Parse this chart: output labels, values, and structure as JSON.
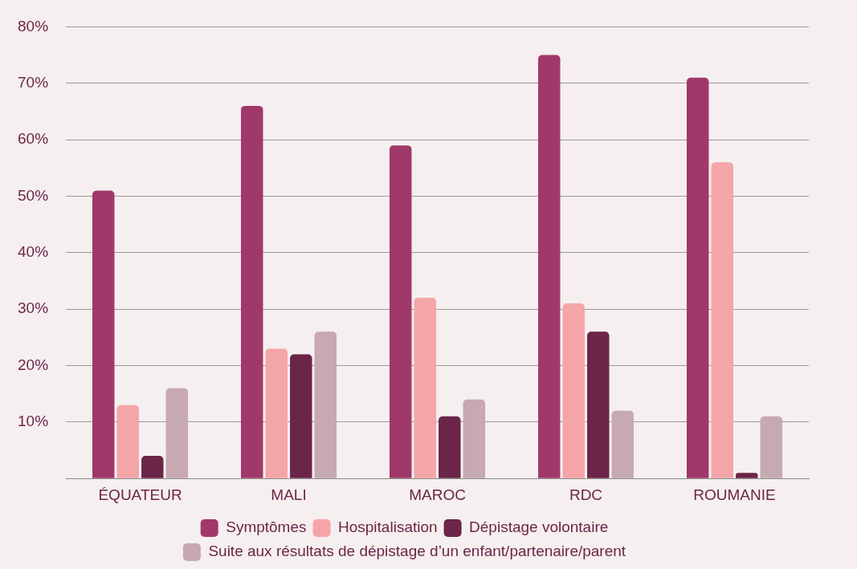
{
  "chart_data": {
    "type": "bar",
    "categories": [
      "ÉQUATEUR",
      "MALI",
      "MAROC",
      "RDC",
      "ROUMANIE"
    ],
    "series": [
      {
        "name": "Symptômes",
        "color": "#a0386a",
        "values": [
          51,
          66,
          59,
          75,
          71
        ]
      },
      {
        "name": "Hospitalisation",
        "color": "#f4a5a8",
        "values": [
          13,
          23,
          32,
          31,
          56
        ]
      },
      {
        "name": "Dépistage volontaire",
        "color": "#6b2548",
        "values": [
          4,
          22,
          11,
          26,
          1
        ]
      },
      {
        "name": "Suite aux résultats de dépistage d’un enfant/partenaire/parent",
        "color": "#c6a9b2",
        "values": [
          16,
          26,
          14,
          12,
          11
        ]
      }
    ],
    "ylim": [
      0,
      80
    ],
    "yticks": [
      {
        "value": 0,
        "label": null
      },
      {
        "value": 10,
        "label": "10%"
      },
      {
        "value": 20,
        "label": "20%"
      },
      {
        "value": 30,
        "label": "30%"
      },
      {
        "value": 40,
        "label": "40%"
      },
      {
        "value": 50,
        "label": "50%"
      },
      {
        "value": 60,
        "label": "60%"
      },
      {
        "value": 70,
        "label": "70%"
      },
      {
        "value": 80,
        "label": "80%"
      }
    ],
    "grid": "y",
    "legend": "bottom"
  }
}
